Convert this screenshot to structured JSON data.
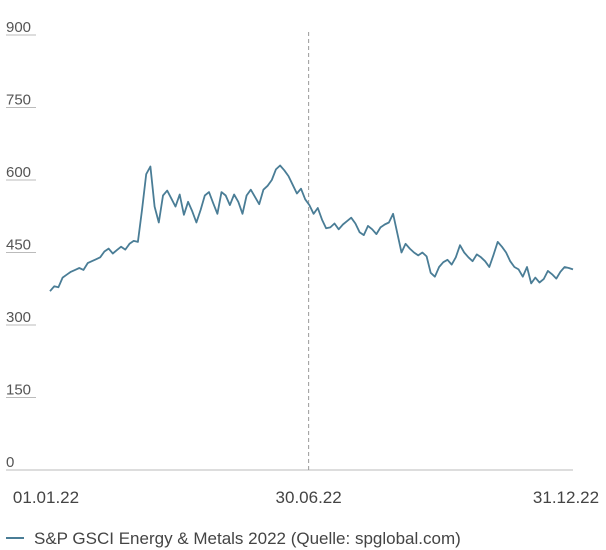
{
  "chart_data": {
    "type": "line",
    "title": "",
    "xlabel": "",
    "ylabel": "",
    "ylim": [
      0,
      900
    ],
    "yticks": [
      0,
      150,
      300,
      450,
      600,
      750,
      900
    ],
    "xticks": [
      "01.01.22",
      "30.06.22",
      "31.12.22"
    ],
    "reference_line": {
      "x": "30.06.22",
      "style": "dashed"
    },
    "grid": false,
    "legend_position": "bottom-left",
    "line_color": "#4a7d96",
    "series": [
      {
        "name": "S&P GSCI Energy & Metals 2022 (Quelle: spglobal.com)",
        "values": [
          370,
          380,
          378,
          398,
          404,
          410,
          414,
          418,
          414,
          428,
          432,
          436,
          440,
          452,
          458,
          448,
          455,
          462,
          456,
          468,
          474,
          472,
          538,
          612,
          628,
          545,
          512,
          568,
          578,
          562,
          545,
          570,
          528,
          555,
          535,
          512,
          538,
          568,
          575,
          552,
          530,
          575,
          568,
          548,
          570,
          555,
          530,
          568,
          580,
          565,
          550,
          580,
          588,
          600,
          622,
          630,
          620,
          608,
          590,
          572,
          582,
          560,
          548,
          530,
          542,
          518,
          500,
          502,
          510,
          498,
          508,
          515,
          522,
          510,
          492,
          486,
          505,
          498,
          488,
          502,
          508,
          512,
          530,
          490,
          450,
          468,
          458,
          450,
          444,
          450,
          442,
          408,
          400,
          420,
          430,
          435,
          425,
          440,
          465,
          450,
          440,
          432,
          446,
          440,
          432,
          420,
          445,
          472,
          462,
          450,
          432,
          420,
          415,
          400,
          420,
          386,
          398,
          388,
          395,
          412,
          405,
          396,
          410,
          420,
          418,
          415
        ]
      }
    ]
  }
}
